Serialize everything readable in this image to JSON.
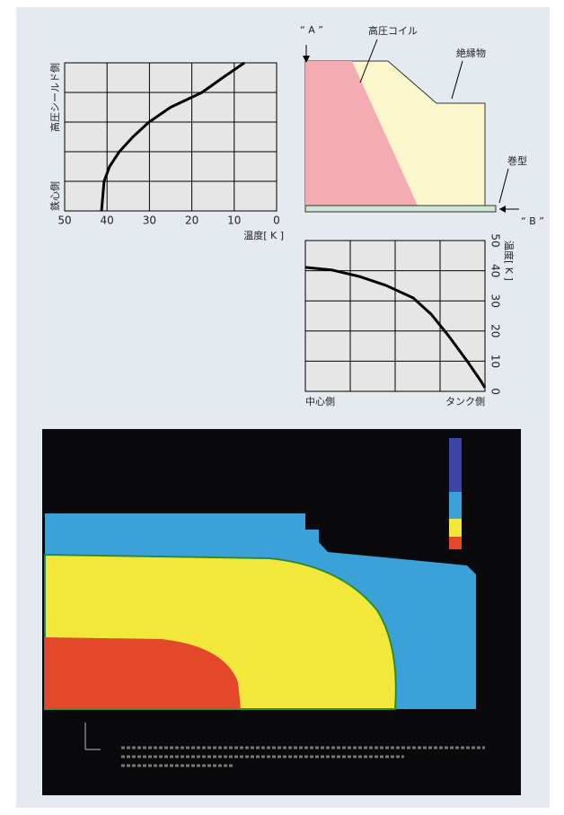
{
  "chart_data": [
    {
      "type": "line",
      "orientation": "horizontal",
      "xlabel": "温度[ K ]",
      "ylabel_top": "高圧シールド側",
      "ylabel_bottom": "鉄心側",
      "xlim": [
        50,
        0
      ],
      "xticks": [
        50,
        40,
        30,
        20,
        10,
        0
      ],
      "ylim": [
        0,
        5
      ],
      "y": [
        0,
        1,
        1.5,
        2,
        2.5,
        3,
        3.5,
        4,
        4.5,
        5
      ],
      "values": [
        41.3,
        40.7,
        39.4,
        37.1,
        33.9,
        30.1,
        25,
        17.6,
        12.7,
        7.6
      ],
      "color": "#000000",
      "grid": true
    },
    {
      "type": "line",
      "orientation": "vertical",
      "ylabel": "温度[ K ]",
      "xlabel_left": "中心側",
      "xlabel_right": "タンク側",
      "xlim": [
        0,
        4
      ],
      "ylim": [
        0,
        50
      ],
      "yticks": [
        0,
        10,
        20,
        30,
        40,
        50
      ],
      "x": [
        0,
        0.6,
        1.2,
        1.8,
        2.4,
        2.8,
        3.2,
        3.6,
        3.9,
        4
      ],
      "values": [
        41.1,
        40.2,
        38.1,
        35.1,
        31,
        25.6,
        18.2,
        10.1,
        3.6,
        1.2
      ],
      "color": "#000000",
      "grid": true
    }
  ],
  "diagram": {
    "labels": [
      "“ A ”",
      "高圧コイル",
      "絶縁物",
      "巻型",
      "“ B ”"
    ]
  }
}
